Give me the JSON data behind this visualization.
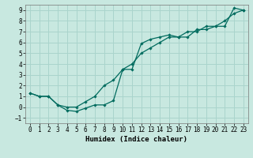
{
  "xlabel": "Humidex (Indice chaleur)",
  "background_color": "#c8e8e0",
  "grid_color": "#aad4cc",
  "line_color": "#006b5e",
  "xlim": [
    -0.5,
    23.5
  ],
  "ylim": [
    -1.5,
    9.5
  ],
  "xticks": [
    0,
    1,
    2,
    3,
    4,
    5,
    6,
    7,
    8,
    9,
    10,
    11,
    12,
    13,
    14,
    15,
    16,
    17,
    18,
    19,
    20,
    21,
    22,
    23
  ],
  "yticks": [
    -1,
    0,
    1,
    2,
    3,
    4,
    5,
    6,
    7,
    8,
    9
  ],
  "line1_x": [
    0,
    1,
    2,
    3,
    4,
    5,
    6,
    7,
    8,
    9,
    10,
    11,
    12,
    13,
    14,
    15,
    16,
    17,
    18,
    19,
    20,
    21,
    22,
    23
  ],
  "line1_y": [
    1.3,
    1.0,
    1.0,
    0.2,
    -0.3,
    -0.4,
    -0.1,
    0.2,
    0.2,
    0.6,
    3.5,
    3.5,
    5.9,
    6.3,
    6.5,
    6.7,
    6.5,
    6.5,
    7.2,
    7.2,
    7.5,
    7.5,
    9.2,
    9.0
  ],
  "line2_x": [
    0,
    1,
    2,
    3,
    4,
    5,
    6,
    7,
    8,
    9,
    10,
    11,
    12,
    13,
    14,
    15,
    16,
    17,
    18,
    19,
    20,
    21,
    22,
    23
  ],
  "line2_y": [
    1.3,
    1.0,
    1.0,
    0.2,
    0.0,
    0.0,
    0.5,
    1.0,
    2.0,
    2.5,
    3.5,
    4.0,
    5.0,
    5.5,
    6.0,
    6.5,
    6.5,
    7.0,
    7.0,
    7.5,
    7.5,
    8.0,
    8.7,
    9.0
  ],
  "tick_labelsize": 5.5,
  "xlabel_fontsize": 6.5
}
